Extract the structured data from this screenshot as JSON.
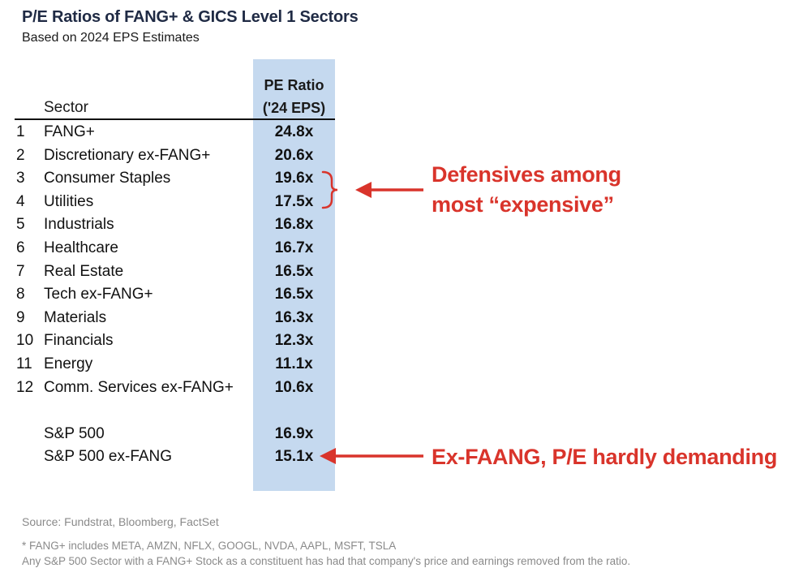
{
  "title": "P/E Ratios of FANG+ & GICS Level 1 Sectors",
  "subtitle": "Based on 2024 EPS Estimates",
  "header": {
    "sector_label": "Sector",
    "pe_label_line1": "PE Ratio",
    "pe_label_line2": "('24 EPS)"
  },
  "chart_data": {
    "type": "table",
    "title": "P/E Ratios of FANG+ & GICS Level 1 Sectors",
    "subtitle": "Based on 2024 EPS Estimates",
    "columns": [
      "Sector",
      "PE Ratio ('24 EPS)"
    ],
    "rows": [
      {
        "rank": "1",
        "sector": "FANG+",
        "pe": "24.8x",
        "pe_value": 24.8
      },
      {
        "rank": "2",
        "sector": "Discretionary ex-FANG+",
        "pe": "20.6x",
        "pe_value": 20.6
      },
      {
        "rank": "3",
        "sector": "Consumer Staples",
        "pe": "19.6x",
        "pe_value": 19.6
      },
      {
        "rank": "4",
        "sector": "Utilities",
        "pe": "17.5x",
        "pe_value": 17.5
      },
      {
        "rank": "5",
        "sector": "Industrials",
        "pe": "16.8x",
        "pe_value": 16.8
      },
      {
        "rank": "6",
        "sector": "Healthcare",
        "pe": "16.7x",
        "pe_value": 16.7
      },
      {
        "rank": "7",
        "sector": "Real Estate",
        "pe": "16.5x",
        "pe_value": 16.5
      },
      {
        "rank": "8",
        "sector": "Tech ex-FANG+",
        "pe": "16.5x",
        "pe_value": 16.5
      },
      {
        "rank": "9",
        "sector": "Materials",
        "pe": "16.3x",
        "pe_value": 16.3
      },
      {
        "rank": "10",
        "sector": "Financials",
        "pe": "12.3x",
        "pe_value": 12.3
      },
      {
        "rank": "11",
        "sector": "Energy",
        "pe": "11.1x",
        "pe_value": 11.1
      },
      {
        "rank": "12",
        "sector": "Comm. Services ex-FANG+",
        "pe": "10.6x",
        "pe_value": 10.6
      }
    ],
    "index_rows": [
      {
        "rank": "",
        "sector": "S&P 500",
        "pe": "16.9x",
        "pe_value": 16.9
      },
      {
        "rank": "",
        "sector": "S&P 500 ex-FANG",
        "pe": "15.1x",
        "pe_value": 15.1
      }
    ],
    "annotations": [
      {
        "line1": "Defensives among",
        "line2": "most “expensive”",
        "targets": [
          "Consumer Staples",
          "Utilities"
        ]
      },
      {
        "line1": "Ex-FAANG, P/E hardly demanding",
        "line2": "",
        "targets": [
          "S&P 500 ex-FANG"
        ]
      }
    ]
  },
  "colors": {
    "highlight_column": "#c5d9ef",
    "annotation": "#d9342b",
    "title": "#1f2a44",
    "footnote": "#8a8a8a"
  },
  "source": "Source: Fundstrat, Bloomberg, FactSet",
  "footnotes": [
    "* FANG+ includes META, AMZN, NFLX, GOOGL, NVDA, AAPL, MSFT, TSLA",
    "Any S&P 500 Sector with a FANG+ Stock as a constituent has had that company's price and earnings removed from the ratio."
  ]
}
